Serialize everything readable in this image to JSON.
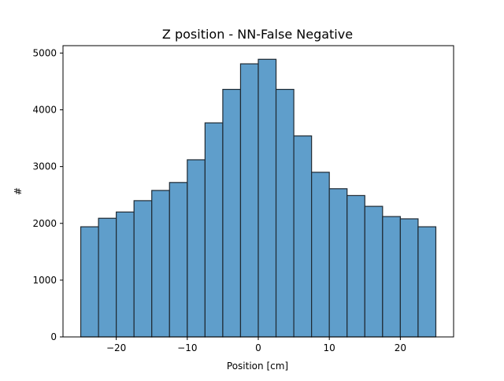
{
  "chart_data": {
    "type": "bar",
    "title": "Z position - NN-False Negative",
    "xlabel": "Position [cm]",
    "ylabel": "#",
    "bin_edges": [
      -25,
      -22.5,
      -20,
      -17.5,
      -15,
      -12.5,
      -10,
      -7.5,
      -5,
      -2.5,
      0,
      2.5,
      5,
      7.5,
      10,
      12.5,
      15,
      17.5,
      20,
      22.5,
      25
    ],
    "values": [
      1940,
      2090,
      2200,
      2400,
      2580,
      2720,
      3120,
      3770,
      4360,
      4810,
      4890,
      4360,
      3540,
      2900,
      2610,
      2490,
      2300,
      2120,
      2080,
      1940
    ],
    "xlim": [
      -27.5,
      27.5
    ],
    "ylim": [
      0,
      5130
    ],
    "xticks": [
      -20,
      -10,
      0,
      10,
      20
    ],
    "xtick_labels": [
      "−20",
      "−10",
      "0",
      "10",
      "20"
    ],
    "yticks": [
      0,
      1000,
      2000,
      3000,
      4000,
      5000
    ],
    "ytick_labels": [
      "0",
      "1000",
      "2000",
      "3000",
      "4000",
      "5000"
    ],
    "bar_color": "#5f9ecb",
    "edge_color": "#1f2a33",
    "grid": false
  }
}
